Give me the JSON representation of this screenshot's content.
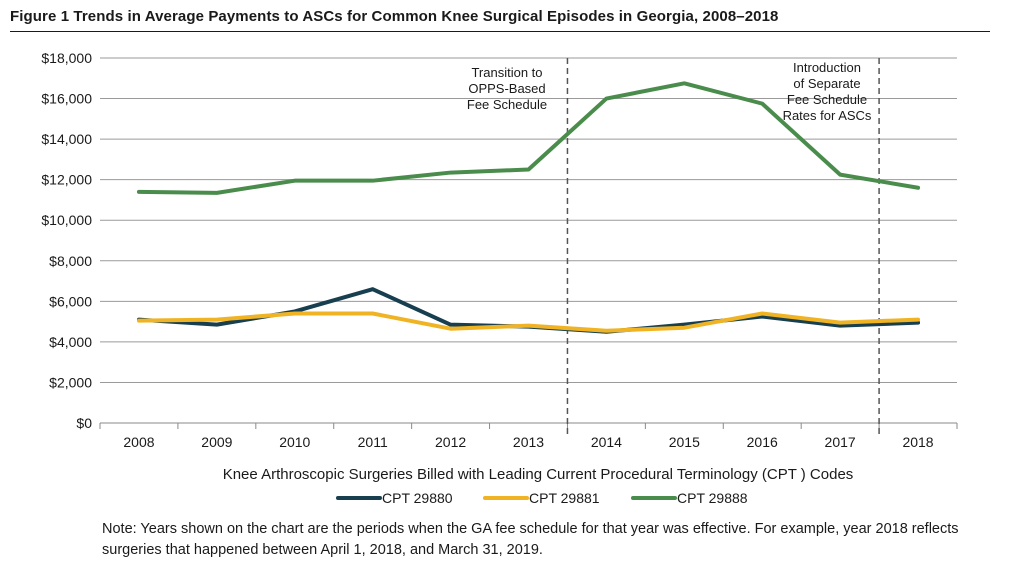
{
  "figure": {
    "title": "Figure 1  Trends in Average Payments to ASCs for Common Knee Surgical Episodes in Georgia, 2008–2018",
    "note": "Note: Years shown on the chart are the periods when the GA fee schedule for that year was effective. For example, year 2018 reflects surgeries that happened between April 1, 2018, and March 31, 2019."
  },
  "chart_data": {
    "type": "line",
    "title": "",
    "xlabel": "Knee Arthroscopic Surgeries Billed with Leading Current Procedural Terminology (CPT ) Codes",
    "ylabel": "",
    "categories": [
      "2008",
      "2009",
      "2010",
      "2011",
      "2012",
      "2013",
      "2014",
      "2015",
      "2016",
      "2017",
      "2018"
    ],
    "ylim": [
      0,
      18000
    ],
    "yticks": [
      0,
      2000,
      4000,
      6000,
      8000,
      10000,
      12000,
      14000,
      16000,
      18000
    ],
    "ytick_labels": [
      "$0",
      "$2,000",
      "$4,000",
      "$6,000",
      "$8,000",
      "$10,000",
      "$12,000",
      "$14,000",
      "$16,000",
      "$18,000"
    ],
    "grid": true,
    "legend_position": "bottom",
    "series": [
      {
        "name": "CPT 29880",
        "color": "#173f4f",
        "values": [
          5100,
          4850,
          5500,
          6600,
          4850,
          4750,
          4500,
          4850,
          5250,
          4800,
          4950
        ]
      },
      {
        "name": "CPT 29881",
        "color": "#f0b323",
        "values": [
          5050,
          5100,
          5400,
          5400,
          4650,
          4800,
          4550,
          4700,
          5400,
          4950,
          5100
        ]
      },
      {
        "name": "CPT 29888",
        "color": "#4a8c4c",
        "values": [
          11400,
          11350,
          11950,
          11950,
          12350,
          12500,
          16000,
          16750,
          15750,
          12250,
          11600
        ]
      }
    ],
    "annotations": [
      {
        "text_lines": [
          "Transition to",
          "OPPS-Based",
          "Fee Schedule"
        ],
        "between": [
          "2013",
          "2014"
        ]
      },
      {
        "text_lines": [
          "Introduction",
          "of Separate",
          "Fee Schedule",
          "Rates for ASCs"
        ],
        "between": [
          "2017",
          "2018"
        ]
      }
    ]
  }
}
